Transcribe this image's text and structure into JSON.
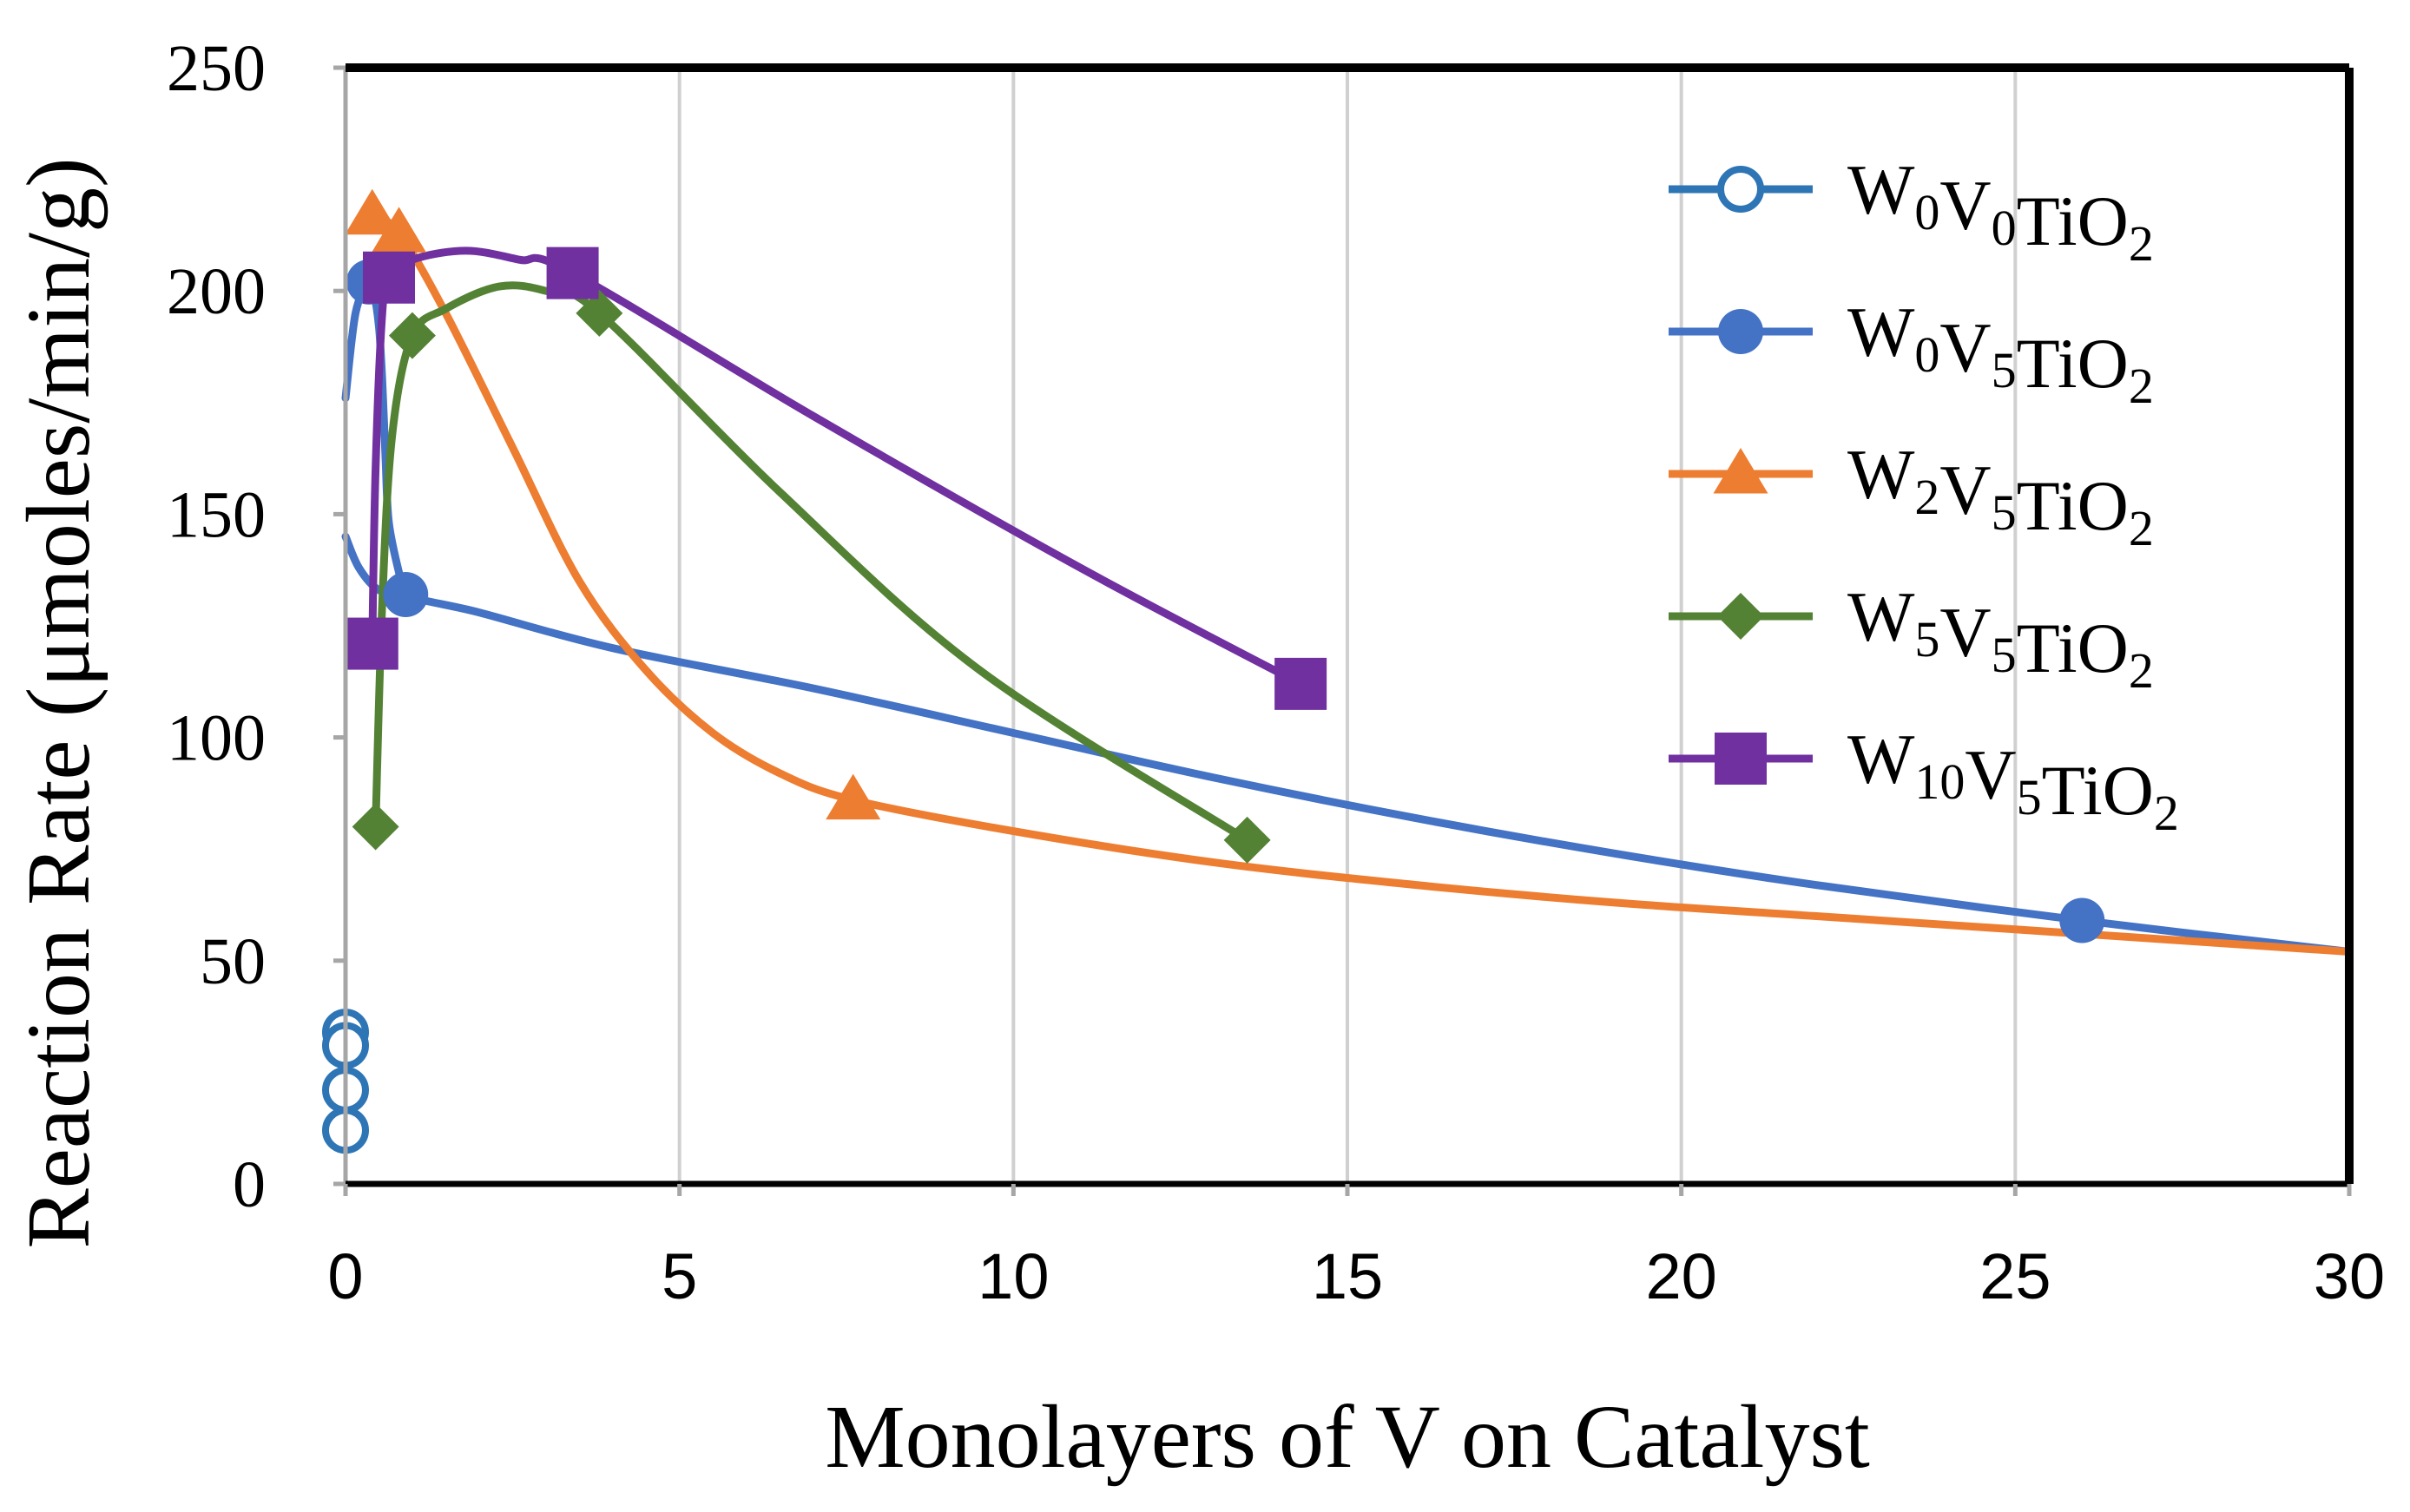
{
  "chart_data": {
    "type": "scatter",
    "title": "",
    "xlabel": "Monolayers of V on Catalyst",
    "ylabel": "Reaction Rate (μmoles/min/g)",
    "xlim": [
      0,
      30
    ],
    "ylim": [
      0,
      250
    ],
    "xticks": [
      0,
      5,
      10,
      15,
      20,
      25,
      30
    ],
    "yticks": [
      0,
      50,
      100,
      150,
      200,
      250
    ],
    "xtick_labels": [
      "0",
      "5",
      "10",
      "15",
      "20",
      "25",
      "30"
    ],
    "ytick_labels": [
      "0",
      "50",
      "100",
      "150",
      "200",
      "250"
    ],
    "grid": "vertical",
    "legend_position": "top-right",
    "series": [
      {
        "name": "W0V0TiO2",
        "label_parts": [
          [
            "W",
            "0"
          ],
          [
            "V",
            "0"
          ],
          [
            "TiO",
            "2"
          ]
        ],
        "color": "#2E75B6",
        "marker": "open-circle",
        "points": [
          [
            0,
            34
          ],
          [
            0,
            31
          ],
          [
            0,
            21
          ],
          [
            0,
            12
          ]
        ],
        "curve": []
      },
      {
        "name": "W0V5TiO2",
        "label_parts": [
          [
            "W",
            "0"
          ],
          [
            "V",
            "5"
          ],
          [
            "TiO",
            "2"
          ]
        ],
        "color": "#4472C4",
        "marker": "circle",
        "points": [
          [
            0.35,
            202
          ],
          [
            0.9,
            132
          ],
          [
            26,
            59
          ]
        ],
        "curve": [
          [
            0,
            176
          ],
          [
            0.15,
            195
          ],
          [
            0.35,
            202
          ],
          [
            0.42,
            200
          ],
          [
            0.5,
            192
          ],
          [
            0.55,
            180
          ],
          [
            0.6,
            162
          ],
          [
            0.65,
            148
          ],
          [
            0.8,
            137
          ],
          [
            0.9,
            132
          ],
          [
            2,
            128
          ],
          [
            4,
            120
          ],
          [
            7,
            111
          ],
          [
            10,
            101
          ],
          [
            13,
            91
          ],
          [
            16,
            82
          ],
          [
            19,
            74
          ],
          [
            22,
            67
          ],
          [
            26,
            59
          ],
          [
            30,
            52
          ]
        ],
        "curve2": [
          [
            0,
            145
          ],
          [
            0.2,
            138
          ],
          [
            0.5,
            133
          ],
          [
            0.9,
            132
          ]
        ]
      },
      {
        "name": "W2V5TiO2",
        "label_parts": [
          [
            "W",
            "2"
          ],
          [
            "V",
            "5"
          ],
          [
            "TiO",
            "2"
          ]
        ],
        "color": "#ED7D31",
        "marker": "triangle",
        "points": [
          [
            0.4,
            217
          ],
          [
            0.8,
            213
          ],
          [
            7.6,
            86
          ]
        ],
        "curve": [
          [
            0.4,
            217
          ],
          [
            0.8,
            213
          ],
          [
            1.5,
            195
          ],
          [
            2.5,
            165
          ],
          [
            3.5,
            135
          ],
          [
            4.5,
            115
          ],
          [
            5.5,
            101
          ],
          [
            6.5,
            92
          ],
          [
            7.6,
            86
          ],
          [
            10,
            79
          ],
          [
            13,
            72
          ],
          [
            16,
            67
          ],
          [
            19,
            63
          ],
          [
            22,
            60
          ],
          [
            25,
            57
          ],
          [
            28,
            54
          ],
          [
            30,
            52
          ]
        ]
      },
      {
        "name": "W5V5TiO2",
        "label_parts": [
          [
            "W",
            "5"
          ],
          [
            "V",
            "5"
          ],
          [
            "TiO",
            "2"
          ]
        ],
        "color": "#548235",
        "marker": "diamond",
        "points": [
          [
            0.45,
            80
          ],
          [
            1.0,
            190
          ],
          [
            3.8,
            195
          ],
          [
            13.5,
            77
          ]
        ],
        "curve": [
          [
            0.45,
            80
          ],
          [
            0.55,
            130
          ],
          [
            0.7,
            168
          ],
          [
            1.0,
            190
          ],
          [
            1.5,
            196
          ],
          [
            2.3,
            201
          ],
          [
            3.0,
            200
          ],
          [
            3.8,
            195
          ],
          [
            6.5,
            155
          ],
          [
            9.5,
            115
          ],
          [
            13.5,
            77
          ]
        ]
      },
      {
        "name": "W10V5TiO2",
        "label_parts": [
          [
            "W",
            "10"
          ],
          [
            "V",
            "5"
          ],
          [
            "TiO",
            "2"
          ]
        ],
        "color": "#7030A0",
        "marker": "square",
        "points": [
          [
            0.4,
            121
          ],
          [
            0.65,
            203
          ],
          [
            3.4,
            204
          ],
          [
            14.3,
            112
          ]
        ],
        "curve": [
          [
            0.4,
            121
          ],
          [
            0.45,
            160
          ],
          [
            0.55,
            195
          ],
          [
            0.65,
            203
          ],
          [
            1.0,
            207
          ],
          [
            1.8,
            209
          ],
          [
            2.6,
            207
          ],
          [
            3.4,
            204
          ],
          [
            7,
            172
          ],
          [
            11,
            138
          ],
          [
            14.3,
            112
          ]
        ]
      }
    ]
  }
}
